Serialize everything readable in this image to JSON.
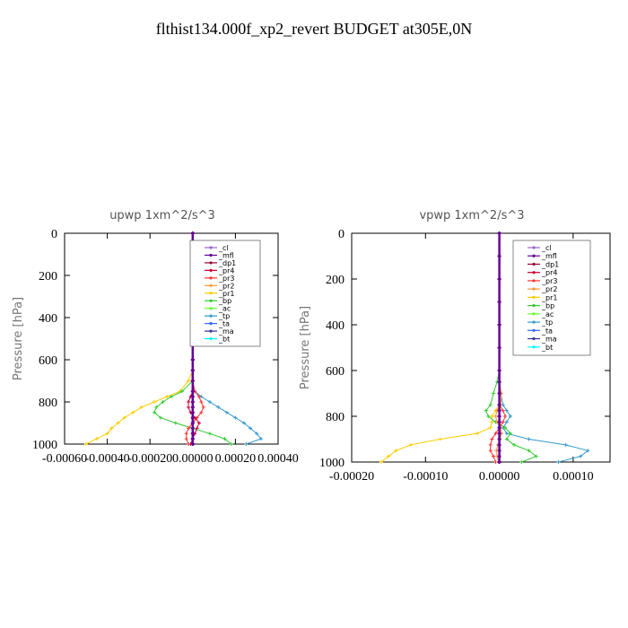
{
  "title": "flthist134.000f_xp2_revert  BUDGET at305E,0N",
  "legend_entries": [
    {
      "name": "_cl",
      "color": "#9966cc"
    },
    {
      "name": "_mfl",
      "color": "#660099"
    },
    {
      "name": "_dp1",
      "color": "#990033"
    },
    {
      "name": "_pr4",
      "color": "#cc0033"
    },
    {
      "name": "_pr3",
      "color": "#ff3333"
    },
    {
      "name": "_pr2",
      "color": "#ff9933"
    },
    {
      "name": "_pr1",
      "color": "#ffcc00"
    },
    {
      "name": "_bp",
      "color": "#33cc33"
    },
    {
      "name": "_ac",
      "color": "#66ff33"
    },
    {
      "name": "_tp",
      "color": "#3399cc"
    },
    {
      "name": "_ta",
      "color": "#3366ff"
    },
    {
      "name": "_ma",
      "color": "#333399"
    },
    {
      "name": "_bt",
      "color": "#00ffff"
    }
  ],
  "chart_data": [
    {
      "type": "line",
      "title": "upwp   1xm^2/s^3",
      "ylabel": "Pressure [hPa]",
      "xlim": [
        -0.0006,
        0.0004
      ],
      "ylim": [
        1000,
        0
      ],
      "xticks": [
        "-0.00060",
        "-0.00040",
        "-0.00020",
        "0.00000",
        "0.00020",
        "0.00040"
      ],
      "yticks": [
        "0",
        "200",
        "400",
        "600",
        "800",
        "1000"
      ],
      "levels": [
        0,
        100,
        200,
        300,
        400,
        500,
        600,
        650,
        700,
        750,
        775,
        800,
        825,
        850,
        875,
        900,
        925,
        950,
        975,
        1000
      ],
      "series": [
        {
          "name": "_tp",
          "values": [
            0,
            0,
            0,
            0,
            0,
            0,
            0,
            0,
            0,
            1e-05,
            4e-05,
            8e-05,
            0.00012,
            0.00016,
            0.0002,
            0.00024,
            0.00027,
            0.0003,
            0.00032,
            0.00025
          ]
        },
        {
          "name": "_pr1",
          "values": [
            0,
            0,
            0,
            0,
            0,
            0,
            0,
            0,
            -2e-05,
            -6e-05,
            -0.00012,
            -0.00018,
            -0.00024,
            -0.00028,
            -0.00032,
            -0.00035,
            -0.00038,
            -0.0004,
            -0.00045,
            -0.0005
          ]
        },
        {
          "name": "_bp",
          "values": [
            0,
            0,
            0,
            0,
            0,
            0,
            0,
            0,
            0,
            -5e-05,
            -0.0001,
            -0.00014,
            -0.00017,
            -0.00018,
            -0.00015,
            -8e-05,
            0,
            8e-05,
            0.00015,
            0.00018
          ]
        },
        {
          "name": "_pr3",
          "values": [
            0,
            0,
            0,
            0,
            0,
            0,
            0,
            0,
            0,
            1e-05,
            3e-05,
            4e-05,
            5e-05,
            4e-05,
            2e-05,
            0,
            -2e-05,
            -3e-05,
            -3e-05,
            -2e-05
          ]
        },
        {
          "name": "_pr4",
          "values": [
            0,
            0,
            0,
            0,
            0,
            0,
            0,
            0,
            0,
            0,
            -1e-05,
            -2e-05,
            -2e-05,
            -1e-05,
            1e-05,
            3e-05,
            2e-05,
            1e-05,
            0,
            -1e-05
          ]
        },
        {
          "name": "_mfl",
          "values": [
            0,
            0,
            0,
            0,
            0,
            0,
            0,
            0,
            0,
            0,
            0,
            0,
            0,
            0,
            0,
            0,
            0,
            0,
            0,
            0
          ]
        }
      ]
    },
    {
      "type": "line",
      "title": "vpwp   1xm^2/s^3",
      "ylabel": "Pressure [hPa]",
      "xlim": [
        -0.0002,
        0.00015
      ],
      "ylim": [
        1000,
        0
      ],
      "xticks": [
        "-0.00020",
        "-0.00010",
        "0.00000",
        "0.00010"
      ],
      "yticks": [
        "0",
        "200",
        "400",
        "600",
        "800",
        "1000"
      ],
      "levels": [
        0,
        100,
        200,
        300,
        400,
        500,
        600,
        650,
        700,
        750,
        775,
        800,
        825,
        850,
        875,
        900,
        925,
        950,
        975,
        1000
      ],
      "series": [
        {
          "name": "_tp",
          "values": [
            0,
            0,
            0,
            0,
            0,
            0,
            0,
            0,
            2e-06,
            5e-06,
            1e-05,
            1.5e-05,
            1e-05,
            5e-06,
            1e-05,
            4e-05,
            9e-05,
            0.00012,
            0.00011,
            8e-05
          ]
        },
        {
          "name": "_pr1",
          "values": [
            0,
            0,
            0,
            0,
            0,
            0,
            0,
            0,
            0,
            0,
            -5e-06,
            -1e-05,
            -1e-05,
            -1.2e-05,
            -3e-05,
            -8e-05,
            -0.00012,
            -0.00014,
            -0.00015,
            -0.00016
          ]
        },
        {
          "name": "_bp",
          "values": [
            0,
            0,
            0,
            0,
            0,
            0,
            0,
            -3e-06,
            -8e-06,
            -1.2e-05,
            -1.8e-05,
            -1.5e-05,
            -5e-06,
            8e-06,
            1.5e-05,
            1e-05,
            2e-05,
            4e-05,
            5e-05,
            3e-05
          ]
        },
        {
          "name": "_pr3",
          "values": [
            0,
            0,
            0,
            0,
            0,
            0,
            0,
            0,
            0,
            0,
            5e-06,
            8e-06,
            5e-06,
            0,
            -5e-06,
            -1e-05,
            -1.2e-05,
            -1.2e-05,
            -8e-06,
            -5e-06
          ]
        },
        {
          "name": "_pr2",
          "values": [
            0,
            0,
            0,
            0,
            0,
            0,
            0,
            0,
            3e-06,
            2e-06,
            -3e-06,
            -5e-06,
            -3e-06,
            2e-06,
            3e-06,
            1e-06,
            -2e-06,
            -4e-06,
            -3e-06,
            -1e-06
          ]
        },
        {
          "name": "_mfl",
          "values": [
            0,
            0,
            0,
            0,
            0,
            0,
            0,
            0,
            0,
            0,
            0,
            0,
            0,
            0,
            0,
            0,
            0,
            0,
            0,
            0
          ]
        }
      ]
    }
  ]
}
